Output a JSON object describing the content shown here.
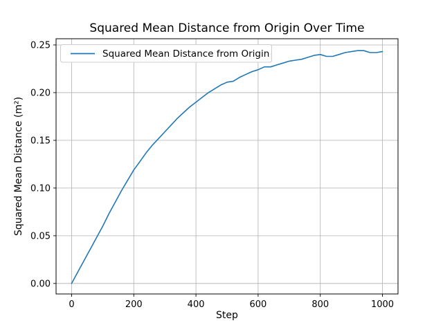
{
  "chart_data": {
    "type": "line",
    "title": "Squared Mean Distance from Origin Over Time",
    "xlabel": "Step",
    "ylabel": "Squared Mean Distance (m²)",
    "grid": true,
    "legend": {
      "position": "upper left",
      "entries": [
        "Squared Mean Distance from Origin"
      ]
    },
    "line_color": "#1f77b4",
    "grid_color": "#b0b0b0",
    "background_color": "#ffffff",
    "xlim": [
      -50,
      1050
    ],
    "ylim": [
      -0.011,
      0.2565
    ],
    "x_ticks": [
      0,
      200,
      400,
      600,
      800,
      1000
    ],
    "x_tick_labels": [
      "0",
      "200",
      "400",
      "600",
      "800",
      "1000"
    ],
    "y_ticks": [
      0.0,
      0.05,
      0.1,
      0.15,
      0.2,
      0.25
    ],
    "y_tick_labels": [
      "0.00",
      "0.05",
      "0.10",
      "0.15",
      "0.20",
      "0.25"
    ],
    "series": [
      {
        "name": "Squared Mean Distance from Origin",
        "x": [
          0,
          20,
          40,
          60,
          80,
          100,
          120,
          140,
          160,
          180,
          200,
          220,
          240,
          260,
          280,
          300,
          320,
          340,
          360,
          380,
          400,
          420,
          440,
          460,
          480,
          500,
          520,
          540,
          560,
          580,
          600,
          620,
          640,
          660,
          680,
          700,
          720,
          740,
          760,
          780,
          800,
          820,
          840,
          860,
          880,
          900,
          920,
          940,
          960,
          980,
          1000
        ],
        "y": [
          0.0,
          0.012,
          0.024,
          0.036,
          0.048,
          0.06,
          0.073,
          0.085,
          0.097,
          0.108,
          0.119,
          0.128,
          0.137,
          0.145,
          0.152,
          0.159,
          0.166,
          0.173,
          0.179,
          0.185,
          0.19,
          0.195,
          0.2,
          0.204,
          0.208,
          0.211,
          0.212,
          0.216,
          0.219,
          0.222,
          0.224,
          0.227,
          0.227,
          0.229,
          0.231,
          0.233,
          0.234,
          0.235,
          0.237,
          0.239,
          0.24,
          0.238,
          0.238,
          0.24,
          0.242,
          0.243,
          0.244,
          0.244,
          0.242,
          0.242,
          0.243
        ]
      }
    ]
  }
}
